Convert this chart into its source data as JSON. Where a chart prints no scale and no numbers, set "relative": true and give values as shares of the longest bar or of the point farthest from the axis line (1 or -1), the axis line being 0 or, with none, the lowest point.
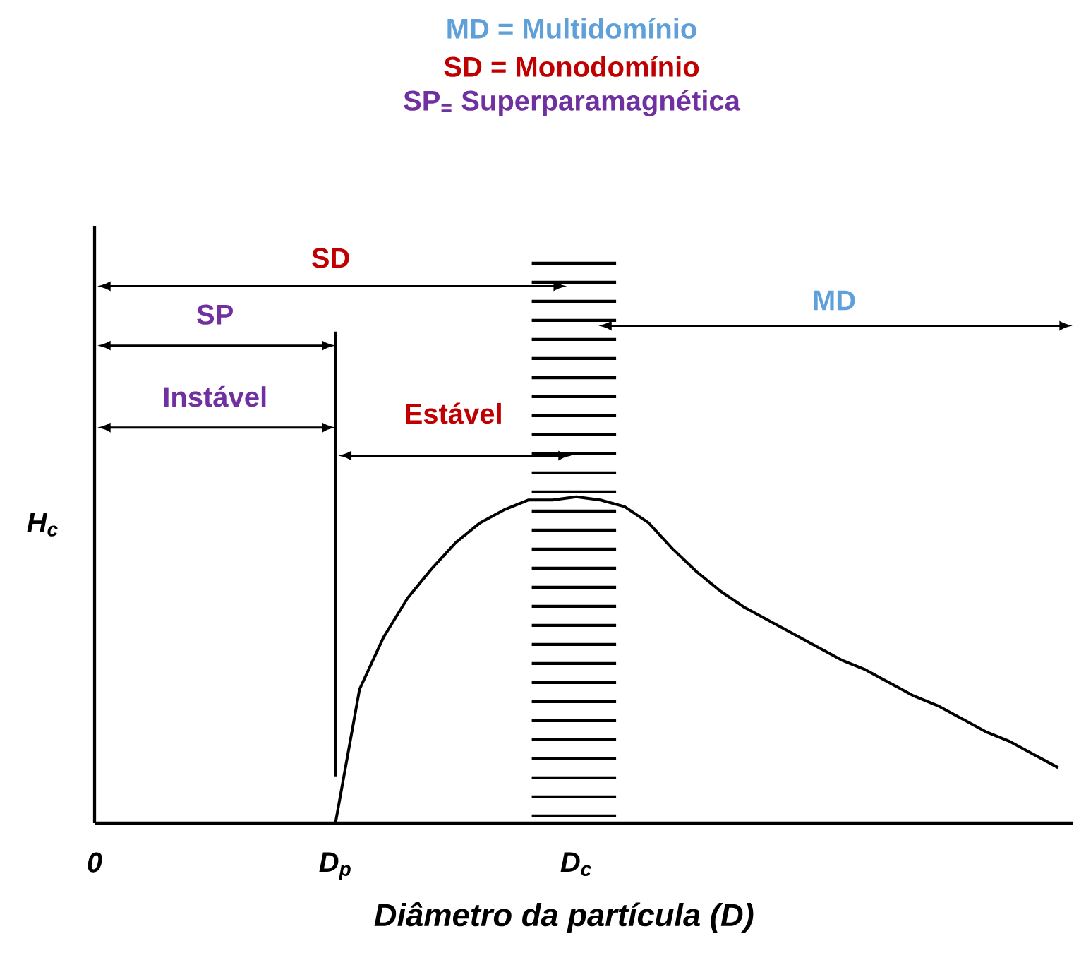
{
  "chart_data": {
    "type": "line",
    "relative": true,
    "xlabel": "Diâmetro da partícula (D)",
    "ylabel": "H$_{c}$",
    "categories": [
      "0",
      null,
      null,
      null,
      null,
      null,
      null,
      null,
      null,
      null,
      "D$_{p}$",
      null,
      null,
      null,
      null,
      null,
      null,
      null,
      null,
      null,
      "D$_{c}$",
      null,
      null,
      null,
      null,
      null,
      null,
      null,
      null,
      null,
      null,
      null,
      null,
      null,
      null,
      null,
      null,
      null,
      null,
      null,
      null
    ],
    "series": [
      {
        "color": "#000000",
        "values": [
          null,
          null,
          null,
          null,
          null,
          null,
          null,
          null,
          null,
          null,
          0,
          0.41,
          0.57,
          0.69,
          0.78,
          0.86,
          0.92,
          0.96,
          0.99,
          0.99,
          1,
          0.99,
          0.97,
          0.92,
          0.84,
          0.77,
          0.71,
          0.66,
          0.62,
          0.58,
          0.54,
          0.5,
          0.47,
          0.43,
          0.39,
          0.36,
          0.32,
          0.28,
          0.25,
          0.21,
          0.17
        ]
      }
    ],
    "annotations": [
      "MD = Multidomínio",
      "SD = Monodomínio",
      "SP$_{=}$ Superparamagnética",
      "SD",
      "SP",
      "Instável",
      "Estável",
      "MD"
    ]
  }
}
